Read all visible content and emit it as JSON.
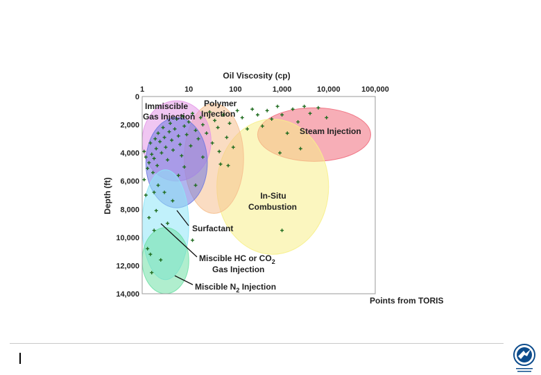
{
  "chart_data": {
    "type": "scatter",
    "xlabel": "Oil Viscosity (cp)",
    "ylabel": "Depth (ft)",
    "x_scale": "log",
    "y_inverted": true,
    "xlim": [
      1,
      100000
    ],
    "ylim": [
      0,
      14000
    ],
    "x_ticks": [
      {
        "value": 1,
        "label": "1"
      },
      {
        "value": 10,
        "label": "10"
      },
      {
        "value": 100,
        "label": "100"
      },
      {
        "value": 1000,
        "label": "1,000"
      },
      {
        "value": 10000,
        "label": "10,000"
      },
      {
        "value": 100000,
        "label": "100,000"
      }
    ],
    "y_ticks": [
      {
        "value": 0,
        "label": "0"
      },
      {
        "value": 2000,
        "label": "2,000"
      },
      {
        "value": 4000,
        "label": "4,000"
      },
      {
        "value": 6000,
        "label": "6,000"
      },
      {
        "value": 8000,
        "label": "8,000"
      },
      {
        "value": 10000,
        "label": "10,000"
      },
      {
        "value": 12000,
        "label": "12,000"
      },
      {
        "value": 14000,
        "label": "14,000"
      }
    ],
    "regions": [
      {
        "name": "Steam Injection",
        "color": "#f06b7c",
        "viscosity_range": [
          300,
          80000
        ],
        "depth_range": [
          800,
          4600
        ]
      },
      {
        "name": "In-Situ Combustion",
        "color": "#f7ef8a",
        "viscosity_range": [
          40,
          10000
        ],
        "depth_range": [
          1600,
          11200
        ]
      },
      {
        "name": "Polymer Injection",
        "color": "#f6c08f",
        "viscosity_range": [
          8,
          150
        ],
        "depth_range": [
          500,
          8300
        ]
      },
      {
        "name": "Immiscible Gas Injection",
        "color": "#e497e8",
        "viscosity_range": [
          1,
          30
        ],
        "depth_range": [
          300,
          6000
        ]
      },
      {
        "name": "Surfactant",
        "color": "#6f79e0",
        "viscosity_range": [
          1.2,
          25
        ],
        "depth_range": [
          1500,
          7900
        ]
      },
      {
        "name": "Miscible HC or CO2 Gas Injection",
        "color": "#8ee6f7",
        "viscosity_range": [
          1,
          10
        ],
        "depth_range": [
          5200,
          13000
        ]
      },
      {
        "name": "Miscible N2 Injection",
        "color": "#6fe0a6",
        "viscosity_range": [
          1,
          10
        ],
        "depth_range": [
          9300,
          14000
        ]
      }
    ],
    "labels": {
      "immiscible_l1": "Immiscible",
      "immiscible_l2": "Gas Injection",
      "polymer_l1": "Polymer",
      "polymer_l2": "Injection",
      "steam": "Steam Injection",
      "insitu_l1": "In-Situ",
      "insitu_l2": "Combustion",
      "surfactant": "Surfactant",
      "miscible_hc_l1": "Miscible HC or CO",
      "miscible_hc_sub": "2",
      "miscible_hc_l2": "Gas Injection",
      "miscible_n2_pre": "Miscible N",
      "miscible_n2_sub": "2",
      "miscible_n2_post": " Injection"
    },
    "points_source": "Points from TORIS",
    "point_color": "#1e6b1e",
    "points": [
      {
        "x": 1.1,
        "y": 3900
      },
      {
        "x": 1.2,
        "y": 4300
      },
      {
        "x": 1.3,
        "y": 5100
      },
      {
        "x": 1.4,
        "y": 4700
      },
      {
        "x": 1.5,
        "y": 3300
      },
      {
        "x": 1.6,
        "y": 4100
      },
      {
        "x": 1.7,
        "y": 5400
      },
      {
        "x": 1.8,
        "y": 4400
      },
      {
        "x": 1.9,
        "y": 3000
      },
      {
        "x": 2.0,
        "y": 3700
      },
      {
        "x": 2.1,
        "y": 4900
      },
      {
        "x": 2.2,
        "y": 2600
      },
      {
        "x": 2.4,
        "y": 3200
      },
      {
        "x": 2.6,
        "y": 4000
      },
      {
        "x": 2.8,
        "y": 2200
      },
      {
        "x": 3.0,
        "y": 2900
      },
      {
        "x": 3.2,
        "y": 3600
      },
      {
        "x": 3.5,
        "y": 4500
      },
      {
        "x": 3.8,
        "y": 2500
      },
      {
        "x": 4.0,
        "y": 1900
      },
      {
        "x": 4.3,
        "y": 3100
      },
      {
        "x": 4.6,
        "y": 3800
      },
      {
        "x": 5.0,
        "y": 2300
      },
      {
        "x": 5.5,
        "y": 1600
      },
      {
        "x": 6.0,
        "y": 2800
      },
      {
        "x": 6.5,
        "y": 3400
      },
      {
        "x": 7.0,
        "y": 4200
      },
      {
        "x": 7.5,
        "y": 1400
      },
      {
        "x": 8.0,
        "y": 2100
      },
      {
        "x": 9.0,
        "y": 2700
      },
      {
        "x": 10.0,
        "y": 1800
      },
      {
        "x": 11.0,
        "y": 3500
      },
      {
        "x": 12.0,
        "y": 1200
      },
      {
        "x": 14.0,
        "y": 2400
      },
      {
        "x": 16.0,
        "y": 3000
      },
      {
        "x": 18.0,
        "y": 1500
      },
      {
        "x": 20.0,
        "y": 2000
      },
      {
        "x": 24.0,
        "y": 2600
      },
      {
        "x": 28.0,
        "y": 1100
      },
      {
        "x": 32.0,
        "y": 3300
      },
      {
        "x": 36.0,
        "y": 1700
      },
      {
        "x": 42.0,
        "y": 2200
      },
      {
        "x": 48.0,
        "y": 4800
      },
      {
        "x": 55.0,
        "y": 1300
      },
      {
        "x": 65.0,
        "y": 2900
      },
      {
        "x": 75.0,
        "y": 1900
      },
      {
        "x": 90.0,
        "y": 3600
      },
      {
        "x": 110.0,
        "y": 1000
      },
      {
        "x": 140.0,
        "y": 1500
      },
      {
        "x": 180.0,
        "y": 2300
      },
      {
        "x": 230.0,
        "y": 900
      },
      {
        "x": 300.0,
        "y": 1300
      },
      {
        "x": 380.0,
        "y": 2100
      },
      {
        "x": 480.0,
        "y": 1000
      },
      {
        "x": 600.0,
        "y": 1600
      },
      {
        "x": 800.0,
        "y": 700
      },
      {
        "x": 1000.0,
        "y": 1300
      },
      {
        "x": 1300.0,
        "y": 2600
      },
      {
        "x": 1700.0,
        "y": 900
      },
      {
        "x": 2200.0,
        "y": 1800
      },
      {
        "x": 3000.0,
        "y": 700
      },
      {
        "x": 4000.0,
        "y": 1200
      },
      {
        "x": 6000.0,
        "y": 800
      },
      {
        "x": 9000.0,
        "y": 1500
      },
      {
        "x": 2500.0,
        "y": 3700
      },
      {
        "x": 900.0,
        "y": 4000
      },
      {
        "x": 45.0,
        "y": 3900
      },
      {
        "x": 14.0,
        "y": 6300
      },
      {
        "x": 3.0,
        "y": 6800
      },
      {
        "x": 4.5,
        "y": 7400
      },
      {
        "x": 1.4,
        "y": 8600
      },
      {
        "x": 1.8,
        "y": 9500
      },
      {
        "x": 1.3,
        "y": 10800
      },
      {
        "x": 2.5,
        "y": 11600
      },
      {
        "x": 1.6,
        "y": 12500
      },
      {
        "x": 1.2,
        "y": 7000
      },
      {
        "x": 1.1,
        "y": 5900
      },
      {
        "x": 2.2,
        "y": 6300
      },
      {
        "x": 6.0,
        "y": 5600
      },
      {
        "x": 2.0,
        "y": 8100
      },
      {
        "x": 1.5,
        "y": 11200
      },
      {
        "x": 1.8,
        "y": 6800
      },
      {
        "x": 1000.0,
        "y": 9500
      },
      {
        "x": 12.0,
        "y": 10200
      },
      {
        "x": 3.5,
        "y": 9000
      },
      {
        "x": 8.0,
        "y": 5000
      },
      {
        "x": 20.0,
        "y": 4300
      },
      {
        "x": 70.0,
        "y": 4900
      }
    ]
  },
  "logo_colors": {
    "primary": "#0d4c8c",
    "light": "#ffffff"
  }
}
